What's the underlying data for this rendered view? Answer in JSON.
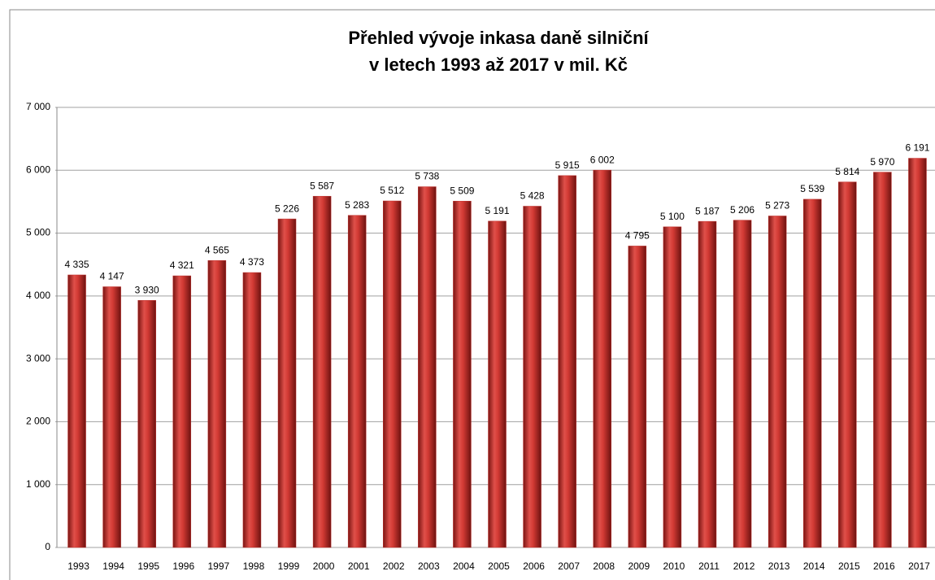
{
  "chart_data": {
    "type": "bar",
    "title": [
      "Přehled vývoje inkasa daně silniční",
      "v letech 1993 až 2017 v mil. Kč"
    ],
    "categories": [
      "1993",
      "1994",
      "1995",
      "1996",
      "1997",
      "1998",
      "1999",
      "2000",
      "2001",
      "2002",
      "2003",
      "2004",
      "2005",
      "2006",
      "2007",
      "2008",
      "2009",
      "2010",
      "2011",
      "2012",
      "2013",
      "2014",
      "2015",
      "2016",
      "2017"
    ],
    "values": [
      4335,
      4147,
      3930,
      4321,
      4565,
      4373,
      5226,
      5587,
      5283,
      5512,
      5738,
      5509,
      5191,
      5428,
      5915,
      6002,
      4795,
      5100,
      5187,
      5206,
      5273,
      5539,
      5814,
      5970,
      6191
    ],
    "value_labels": [
      "4 335",
      "4 147",
      "3 930",
      "4 321",
      "4 565",
      "4 373",
      "5 226",
      "5 587",
      "5 283",
      "5 512",
      "5 738",
      "5 509",
      "5 191",
      "5 428",
      "5 915",
      "6 002",
      "4 795",
      "5 100",
      "5 187",
      "5 206",
      "5 273",
      "5 539",
      "5 814",
      "5 970",
      "6 191"
    ],
    "color": "#c0302c",
    "ylim": [
      0,
      7000
    ],
    "yticks": [
      0,
      {
        "value": 1000,
        "label": "1 000"
      },
      {
        "value": 2000,
        "label": "2 000"
      },
      {
        "value": 3000,
        "label": "3 000"
      },
      {
        "value": 4000,
        "label": "4 000"
      },
      {
        "value": 5000,
        "label": "5 000"
      },
      {
        "value": 6000,
        "label": "6 000"
      },
      {
        "value": 7000,
        "label": "7 000"
      }
    ],
    "grid": true
  }
}
